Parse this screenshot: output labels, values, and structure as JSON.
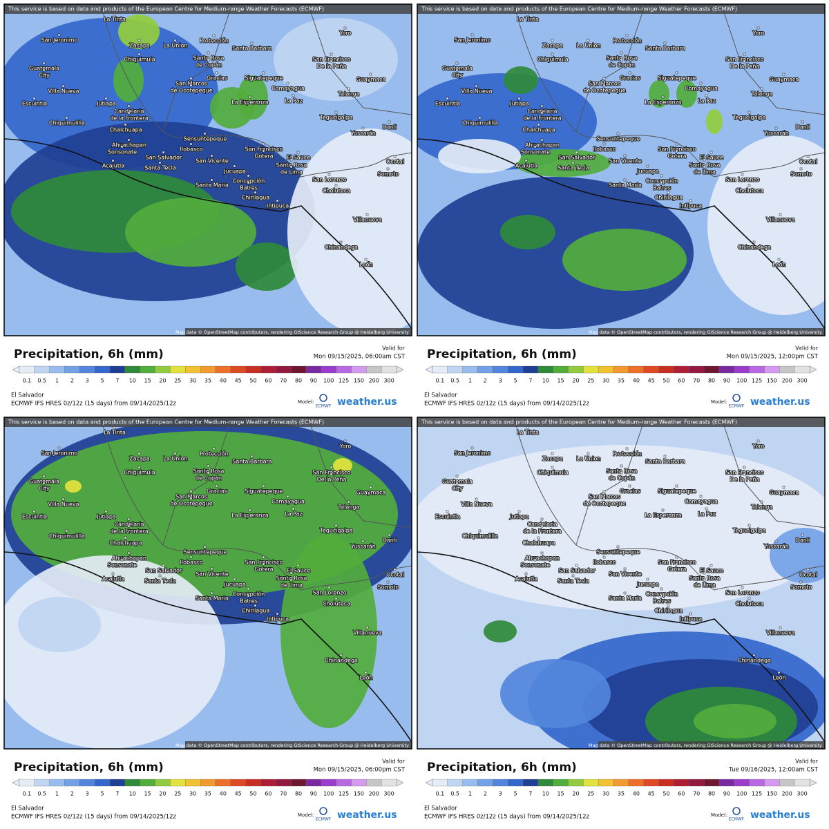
{
  "header_note": "This service is based on data and products of the European Centre for Medium-range Weather Forecasts (ECMWF)",
  "attribution": "Map data © OpenStreetMap contributors, rendering GIScience Research Group @ Heidelberg University",
  "places": [
    "La Tinta",
    "San Jeronimo",
    "Zacapa",
    "La Union",
    "Protección",
    "Santa Barbara",
    "Yoro",
    "San Francisco",
    "De la Peña",
    "Chiquimula",
    "Guatemala",
    "City",
    "Villa Nueva",
    "Santa Rosa",
    "de Copán",
    "Gracias",
    "San Marcos",
    "de Ocotepeque",
    "Siguatepeque",
    "Comayagua",
    "Guaymaca",
    "Talanga",
    "La Esperanza",
    "La Paz",
    "Escuintla",
    "Jutiapa",
    "Candelaria",
    "de la Frontera",
    "Tegucigalpa",
    "Chiquimulilla",
    "Chalchuapa",
    "Danli",
    "Yuscarán",
    "Ahuachapan",
    "Sensuntepeque",
    "Sonsonate",
    "Ilobasco",
    "San Francisco",
    "Gotera",
    "San Salvador",
    "San Vicente",
    "Acajutla",
    "Santa Tecla",
    "El Sauce",
    "Ocotal",
    "Jucuapa",
    "Santa Rosa",
    "de Lima",
    "Somoto",
    "Concepción",
    "Batres",
    "San Lorenzo",
    "Santa Maria",
    "Choluteca",
    "Chirilagua",
    "Intipuca",
    "Villanueva",
    "Chinandega",
    "León"
  ],
  "legend": {
    "title": "Precipitation, 6h (mm)",
    "ticks": [
      0.1,
      0.5,
      1,
      2,
      3,
      5,
      7,
      10,
      15,
      20,
      25,
      30,
      35,
      40,
      45,
      50,
      60,
      70,
      80,
      90,
      100,
      125,
      150,
      200,
      300
    ],
    "colors": [
      "#e4ecf6",
      "#c0d5f2",
      "#98bcee",
      "#73a1e6",
      "#5286dc",
      "#3467cc",
      "#1f3f94",
      "#2f8a3a",
      "#52ad3c",
      "#92cc3e",
      "#e2e23e",
      "#f2c232",
      "#f29a30",
      "#ec702a",
      "#de4a26",
      "#c82e22",
      "#b01e36",
      "#921a40",
      "#6e1830",
      "#7a2aa0",
      "#9a3ccc",
      "#b868e0",
      "#d49af0",
      "#c6c6c6",
      "#e2e2e2"
    ]
  },
  "valid_label": "Valid for",
  "region": "El Salvador",
  "model_line": "ECMWF IFS HRES 0z/12z (15 days) from  09/14/2025/12z",
  "model_label": "Model:",
  "model_logo": "ECMWF",
  "brand": "weather.us",
  "panels": [
    {
      "valid": "Mon 09/15/2025, 06:00am CST"
    },
    {
      "valid": "Mon 09/15/2025, 12:00pm CST"
    },
    {
      "valid": "Mon 09/15/2025, 06:00pm CST"
    },
    {
      "valid": "Tue 09/16/2025, 12:00am CST"
    }
  ]
}
